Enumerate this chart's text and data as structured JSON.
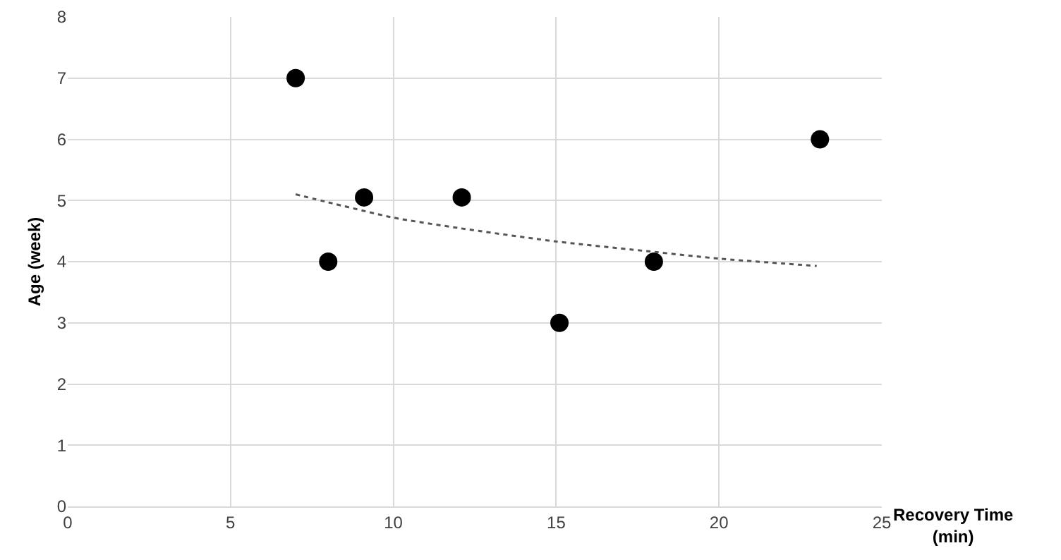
{
  "chart_data": {
    "type": "scatter",
    "xlabel": "Recovery Time\n(min)",
    "ylabel": "Age (week)",
    "xlim": [
      0,
      25
    ],
    "xticks": [
      0,
      5,
      10,
      15,
      20,
      25
    ],
    "ylim": [
      0,
      8
    ],
    "yticks": [
      0,
      1,
      2,
      3,
      4,
      5,
      6,
      7,
      8
    ],
    "grid": true,
    "marker": "circle",
    "series": [
      {
        "color": "#000000",
        "x": [
          7,
          8,
          9.1,
          12.1,
          15.1,
          18,
          23.1
        ],
        "values": [
          7,
          4,
          5.05,
          5.05,
          3,
          4,
          6
        ]
      },
      {
        "type": "line",
        "color": "#555555",
        "line_style": "dotted",
        "marker": "none",
        "x": [
          7,
          8,
          10,
          12,
          15,
          18,
          20,
          23
        ],
        "values": [
          5.1,
          4.97,
          4.72,
          4.55,
          4.33,
          4.16,
          4.05,
          3.93
        ]
      }
    ]
  }
}
